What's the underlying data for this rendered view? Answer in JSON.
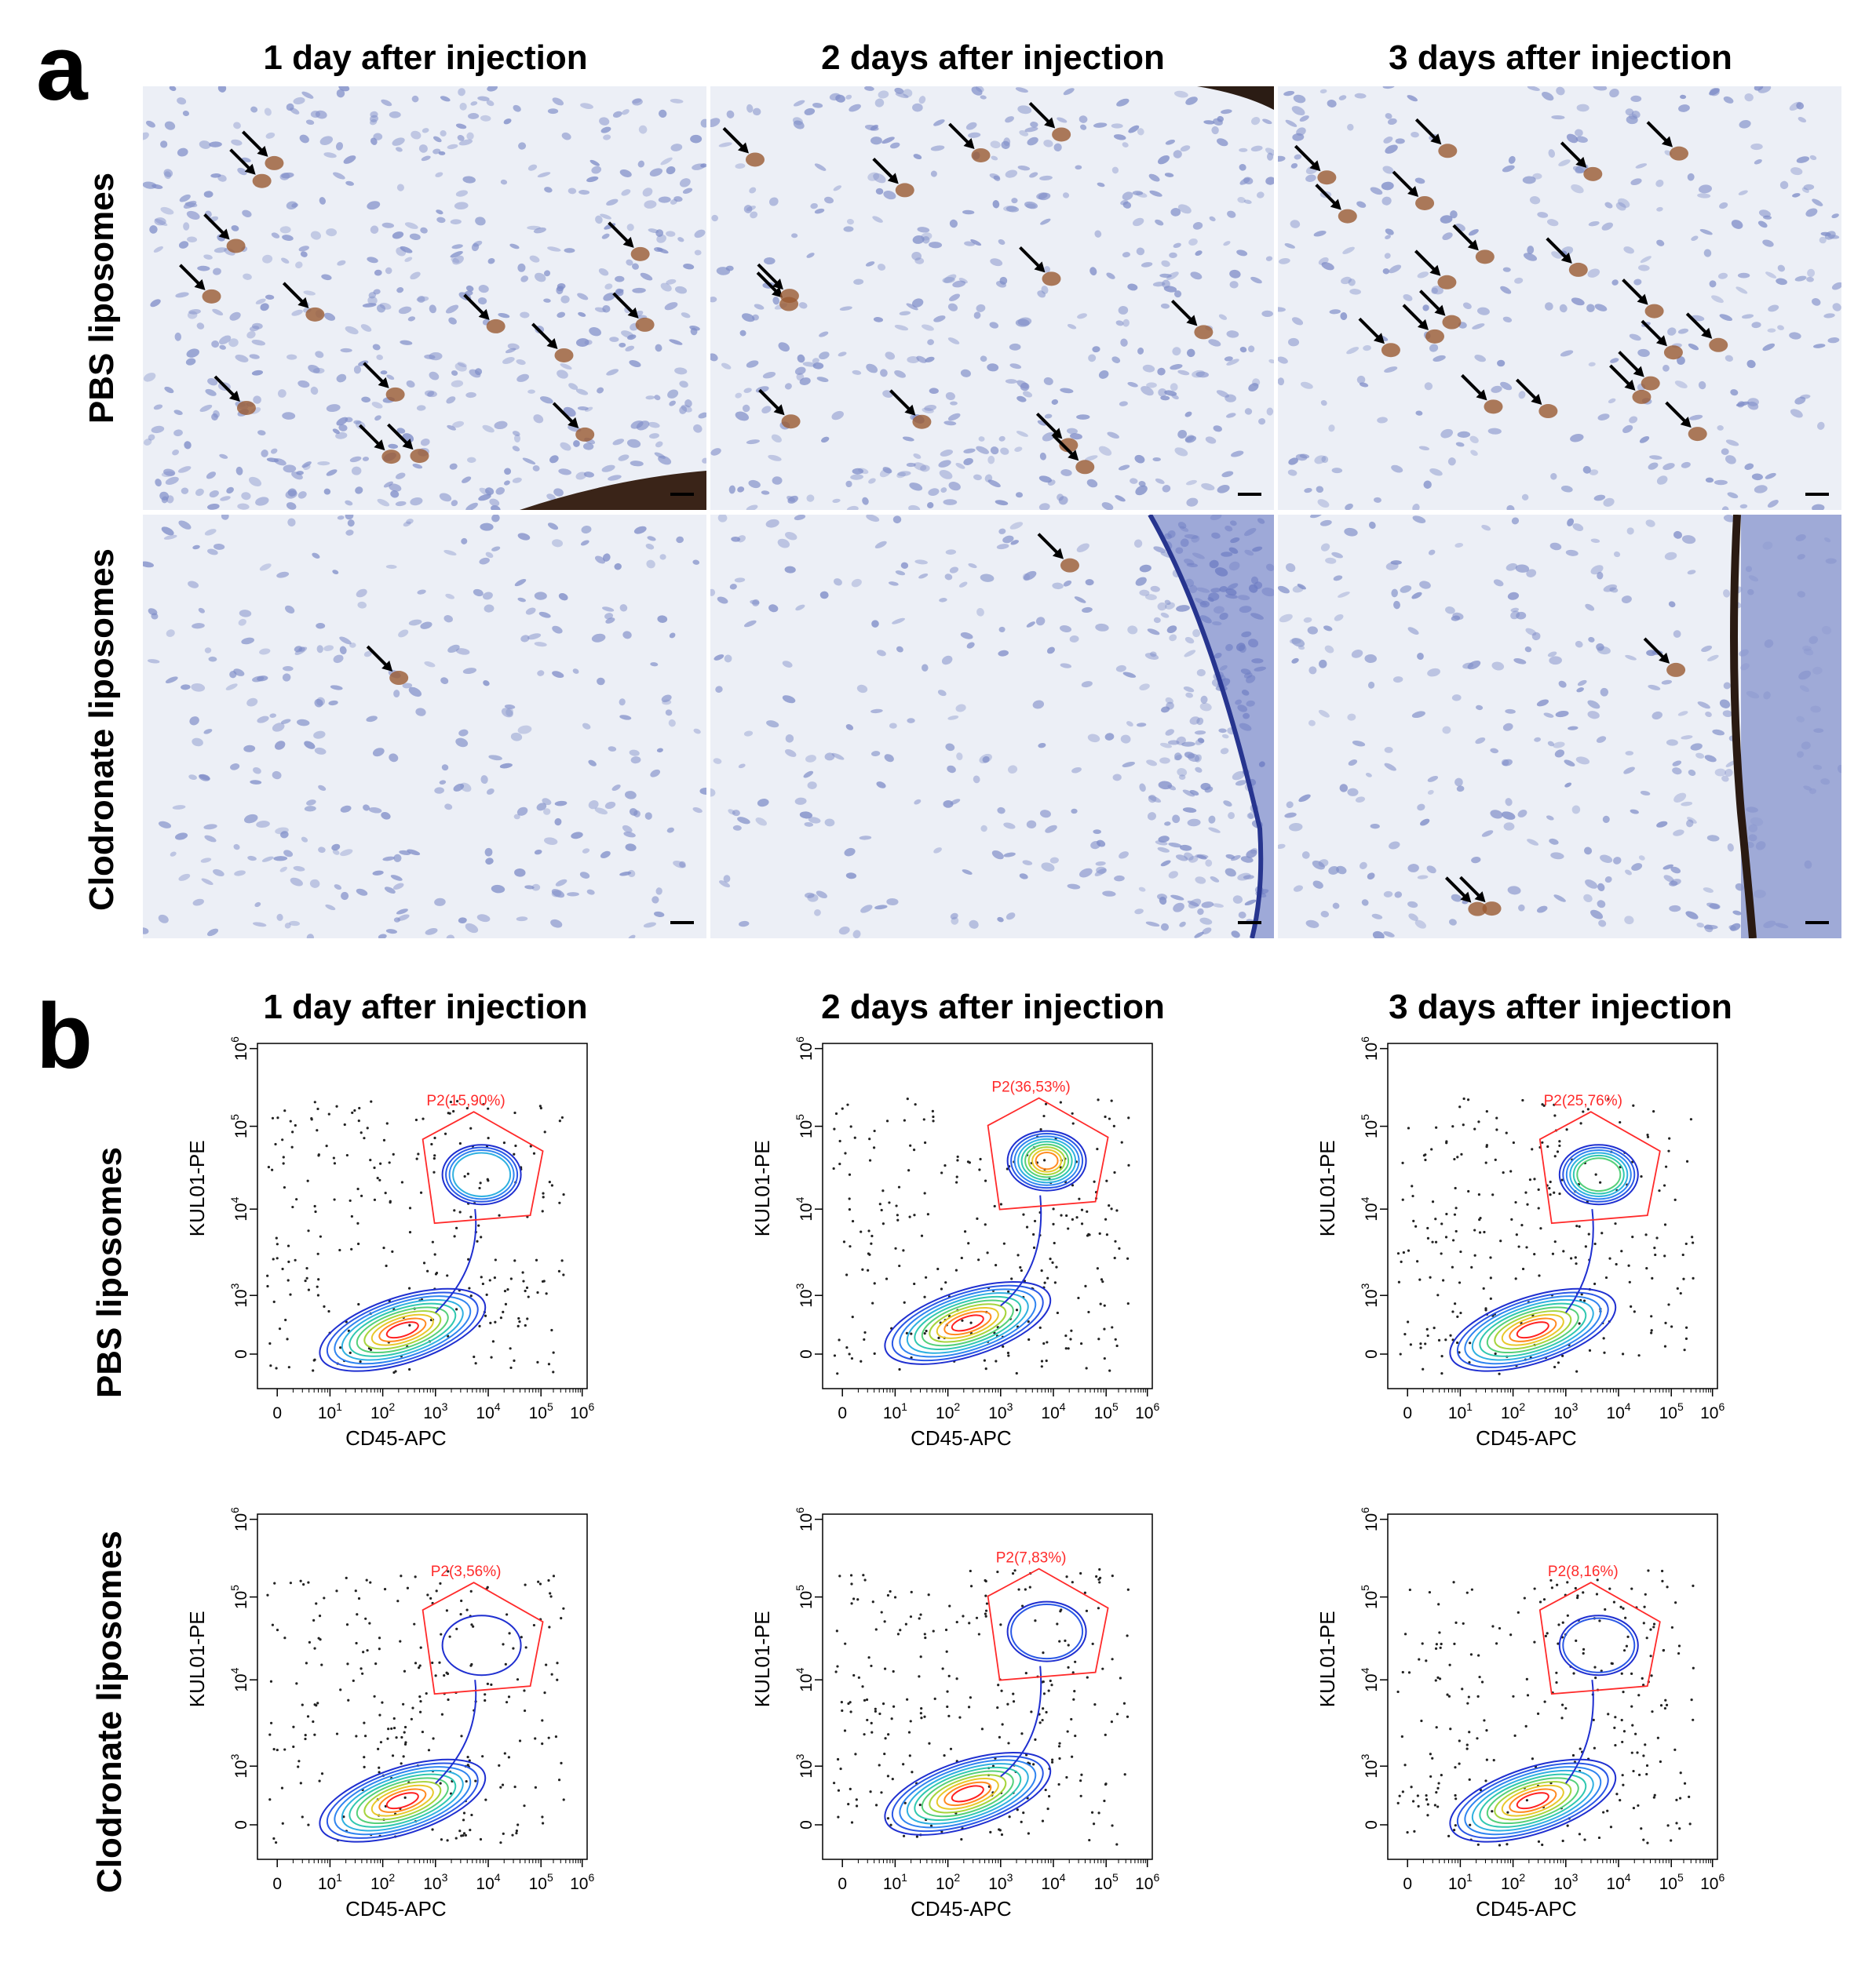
{
  "panel_a": {
    "letter": "a",
    "columns": [
      "1 day after injection",
      "2 days after injection",
      "3 days after injection"
    ],
    "rows": [
      "PBS liposomes",
      "Clodronate liposomes"
    ],
    "images": [
      {
        "row": 0,
        "col": 0,
        "arrows": 14,
        "tissue": "high-cellularity",
        "edge": "bottom-right-dark"
      },
      {
        "row": 0,
        "col": 1,
        "arrows": 12,
        "tissue": "fibrous",
        "edge": "top-right-dark"
      },
      {
        "row": 0,
        "col": 2,
        "arrows": 20,
        "tissue": "sparse",
        "edge": "none"
      },
      {
        "row": 1,
        "col": 0,
        "arrows": 1,
        "tissue": "sparse",
        "edge": "none"
      },
      {
        "row": 1,
        "col": 1,
        "arrows": 1,
        "tissue": "dense-border",
        "edge": "right-blue-border"
      },
      {
        "row": 1,
        "col": 2,
        "arrows": 3,
        "tissue": "sparse",
        "edge": "right-dark-membrane"
      }
    ]
  },
  "panel_b": {
    "letter": "b",
    "columns": [
      "1 day after injection",
      "2 days after injection",
      "3 days after injection"
    ],
    "rows": [
      "PBS liposomes",
      "Clodronate liposomes"
    ]
  },
  "chart_data": [
    {
      "type": "scatter",
      "row": "PBS liposomes",
      "col": "1 day after injection",
      "xlabel": "CD45-APC",
      "ylabel": "KUL01-PE",
      "gate": "P2(15,90%)",
      "gate_percent": 15.9
    },
    {
      "type": "scatter",
      "row": "PBS liposomes",
      "col": "2 days after injection",
      "xlabel": "CD45-APC",
      "ylabel": "KUL01-PE",
      "gate": "P2(36,53%)",
      "gate_percent": 36.53
    },
    {
      "type": "scatter",
      "row": "PBS liposomes",
      "col": "3 days after injection",
      "xlabel": "CD45-APC",
      "ylabel": "KUL01-PE",
      "gate": "P2(25,76%)",
      "gate_percent": 25.76
    },
    {
      "type": "scatter",
      "row": "Clodronate liposomes",
      "col": "1 day after injection",
      "xlabel": "CD45-APC",
      "ylabel": "KUL01-PE",
      "gate": "P2(3,56%)",
      "gate_percent": 3.56
    },
    {
      "type": "scatter",
      "row": "Clodronate liposomes",
      "col": "2 days after injection",
      "xlabel": "CD45-APC",
      "ylabel": "KUL01-PE",
      "gate": "P2(7,83%)",
      "gate_percent": 7.83
    },
    {
      "type": "scatter",
      "row": "Clodronate liposomes",
      "col": "3 days after injection",
      "xlabel": "CD45-APC",
      "ylabel": "KUL01-PE",
      "gate": "P2(8,16%)",
      "gate_percent": 8.16
    }
  ],
  "axis_ticks": {
    "x": [
      "0",
      "10",
      "10",
      "10",
      "10",
      "10",
      "10"
    ],
    "x_exp": [
      "",
      "1",
      "2",
      "3",
      "4",
      "5",
      "6"
    ],
    "y": [
      "0",
      "10",
      "10",
      "10",
      "10"
    ],
    "y_exp": [
      "",
      "3",
      "4",
      "5",
      "6"
    ]
  },
  "colors": {
    "tissue_bg": "#eceff6",
    "nuclei": "#7f8dc8",
    "brown_stain": "#9a5a32",
    "gate": "#ff2a2a",
    "contour_outer": "#2233cc",
    "contour_inner": "#ff2020"
  }
}
